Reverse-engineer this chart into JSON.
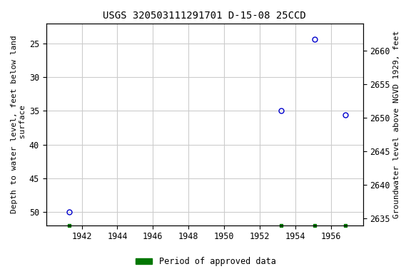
{
  "title": "USGS 320503111291701 D-15-08 25CCD",
  "ylabel_left": "Depth to water level, feet below land\n surface",
  "ylabel_right": "Groundwater level above NGVD 1929, feet",
  "bg_color": "#ffffff",
  "plot_bg_color": "#ffffff",
  "grid_color": "#cccccc",
  "data_points": [
    {
      "year": 1941.3,
      "depth": 50.0
    },
    {
      "year": 1953.2,
      "depth": 35.0
    },
    {
      "year": 1955.1,
      "depth": 24.3
    },
    {
      "year": 1956.8,
      "depth": 35.6
    }
  ],
  "green_ticks": [
    1941.3,
    1953.2,
    1955.1,
    1956.8
  ],
  "xlim": [
    1940.0,
    1957.8
  ],
  "xticks": [
    1942,
    1944,
    1946,
    1948,
    1950,
    1952,
    1954,
    1956
  ],
  "ylim_left": [
    52,
    22
  ],
  "ylim_right": [
    2634,
    2664
  ],
  "yticks_left": [
    25,
    30,
    35,
    40,
    45,
    50
  ],
  "yticks_right": [
    2635,
    2640,
    2645,
    2650,
    2655,
    2660
  ],
  "point_color": "#0000cc",
  "marker_size": 5,
  "green_color": "#007700",
  "legend_label": "Period of approved data",
  "title_fontsize": 10,
  "axis_label_fontsize": 8,
  "tick_fontsize": 8.5
}
